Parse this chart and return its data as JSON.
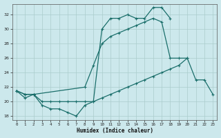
{
  "xlabel": "Humidex (Indice chaleur)",
  "bg_color": "#cce8ec",
  "grid_color": "#aacccc",
  "line_color": "#1a6e6a",
  "ylim": [
    17.5,
    33.5
  ],
  "xlim": [
    -0.5,
    23.5
  ],
  "yticks": [
    18,
    20,
    22,
    24,
    26,
    28,
    30,
    32
  ],
  "xticks": [
    0,
    1,
    2,
    3,
    4,
    5,
    6,
    7,
    8,
    9,
    10,
    11,
    12,
    13,
    14,
    15,
    16,
    17,
    18,
    19,
    20,
    21,
    22,
    23
  ],
  "series_top_x": [
    0,
    1,
    2,
    3,
    4,
    5,
    6,
    7,
    8,
    9,
    10,
    11,
    12,
    13,
    14,
    15,
    16,
    17,
    18
  ],
  "series_top_y": [
    21.5,
    20.5,
    21,
    19.5,
    19,
    19,
    18.5,
    18,
    19.5,
    20,
    30,
    31.5,
    31.5,
    32,
    31.5,
    31.5,
    33,
    33,
    31.5
  ],
  "series_mid_x": [
    0,
    1,
    2,
    8,
    9,
    10,
    11,
    12,
    13,
    14,
    15,
    16,
    17,
    18,
    19,
    20
  ],
  "series_mid_y": [
    21.5,
    21,
    21,
    22,
    25,
    28,
    29,
    29.5,
    30,
    30.5,
    31,
    31.5,
    31,
    26,
    26,
    26
  ],
  "series_bot_x": [
    0,
    1,
    2,
    3,
    4,
    5,
    6,
    7,
    8,
    9,
    10,
    11,
    12,
    13,
    14,
    15,
    16,
    17,
    18,
    19,
    20,
    21,
    22,
    23
  ],
  "series_bot_y": [
    21.5,
    21,
    21,
    20,
    20,
    20,
    20,
    20,
    20,
    20,
    20.5,
    21,
    21.5,
    22,
    22.5,
    23,
    23.5,
    24,
    24.5,
    25,
    26,
    23,
    23,
    21
  ]
}
